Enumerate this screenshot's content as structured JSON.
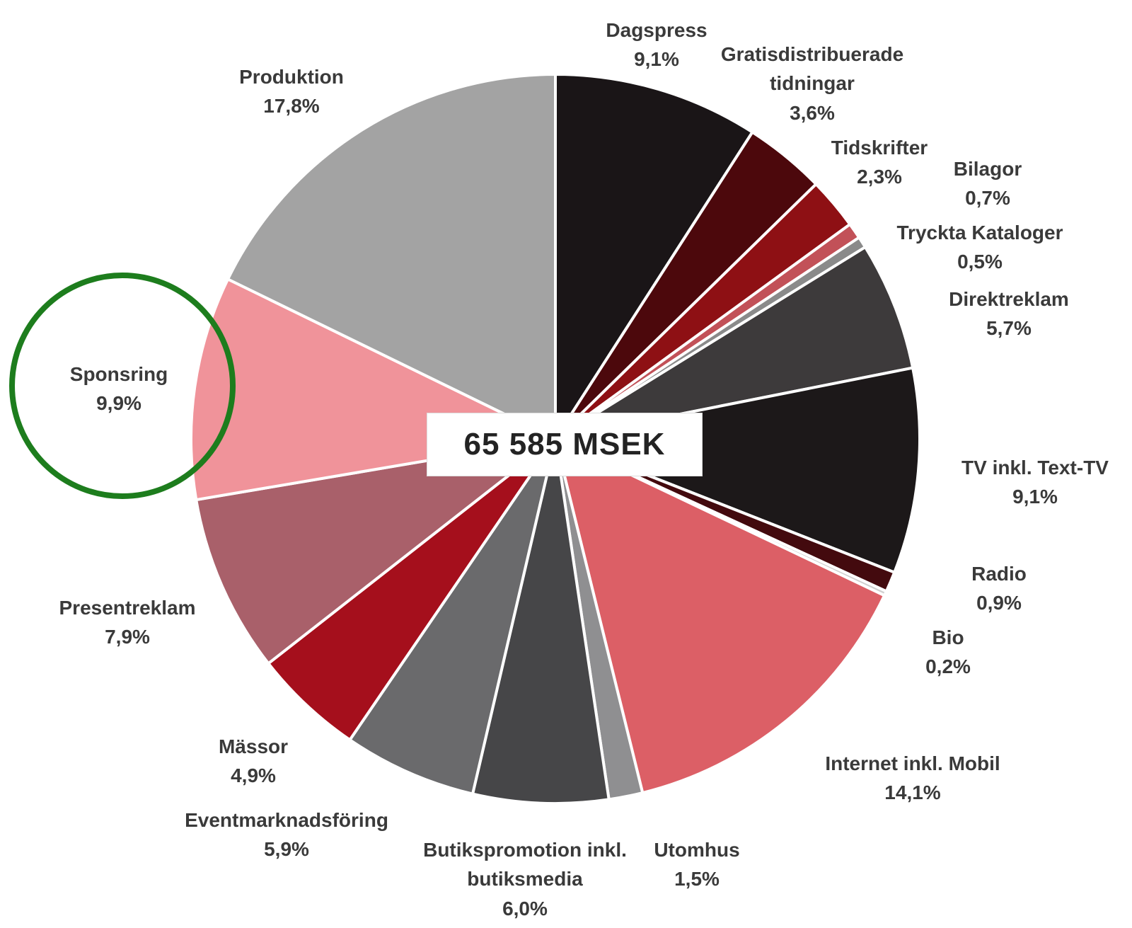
{
  "chart_data": {
    "type": "pie",
    "title": "",
    "center_label": "65 585 MSEK",
    "legend_position": "none",
    "start_angle_deg": 0,
    "direction": "clockwise",
    "slices": [
      {
        "name": "Dagspress",
        "pct": "9,1%",
        "value": 9.1,
        "color": "#1a1517"
      },
      {
        "name": "Gratisdistribuerade tidningar",
        "pct": "3,6%",
        "value": 3.6,
        "color": "#4c080c"
      },
      {
        "name": "Tidskrifter",
        "pct": "2,3%",
        "value": 2.3,
        "color": "#8e1014"
      },
      {
        "name": "Bilagor",
        "pct": "0,7%",
        "value": 0.7,
        "color": "#c25158"
      },
      {
        "name": "Tryckta Kataloger",
        "pct": "0,5%",
        "value": 0.5,
        "color": "#8a8a8a"
      },
      {
        "name": "Direktreklam",
        "pct": "5,7%",
        "value": 5.7,
        "color": "#3d3a3b"
      },
      {
        "name": "TV inkl. Text-TV",
        "pct": "9,1%",
        "value": 9.1,
        "color": "#1c1819"
      },
      {
        "name": "Radio",
        "pct": "0,9%",
        "value": 0.9,
        "color": "#430a0e"
      },
      {
        "name": "Bio",
        "pct": "0,2%",
        "value": 0.2,
        "color": "#d0d0d0"
      },
      {
        "name": "Internet inkl. Mobil",
        "pct": "14,1%",
        "value": 14.1,
        "color": "#dc5f66"
      },
      {
        "name": "Utomhus",
        "pct": "1,5%",
        "value": 1.5,
        "color": "#8f8f91"
      },
      {
        "name": "Butikspromotion inkl. butiksmedia",
        "pct": "6,0%",
        "value": 6.0,
        "color": "#464648"
      },
      {
        "name": "Eventmarknadsföring",
        "pct": "5,9%",
        "value": 5.9,
        "color": "#6a6a6c"
      },
      {
        "name": "Mässor",
        "pct": "4,9%",
        "value": 4.9,
        "color": "#a50f1c"
      },
      {
        "name": "Presentreklam",
        "pct": "7,9%",
        "value": 7.9,
        "color": "#a9606a"
      },
      {
        "name": "Sponsring",
        "pct": "9,9%",
        "value": 9.9,
        "color": "#f0939a"
      },
      {
        "name": "Produktion",
        "pct": "17,8%",
        "value": 17.8,
        "color": "#a3a3a3"
      }
    ],
    "annotation": {
      "shape": "circle",
      "highlights": "Sponsring",
      "color": "#1d7d1d"
    },
    "slice_border_color": "#ffffff"
  }
}
